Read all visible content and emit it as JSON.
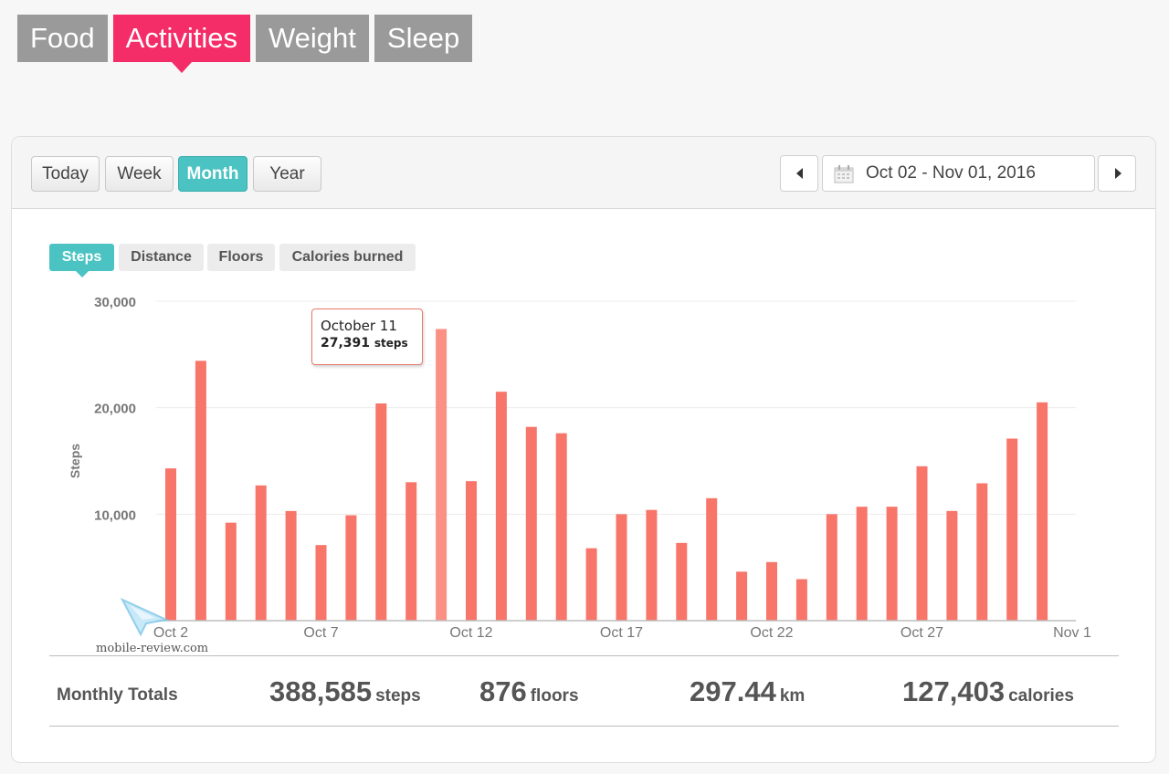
{
  "nav": {
    "tabs": [
      {
        "label": "Food",
        "active": false
      },
      {
        "label": "Activities",
        "active": true
      },
      {
        "label": "Weight",
        "active": false
      },
      {
        "label": "Sleep",
        "active": false
      }
    ]
  },
  "range_buttons": [
    {
      "label": "Today",
      "active": false
    },
    {
      "label": "Week",
      "active": false
    },
    {
      "label": "Month",
      "active": true
    },
    {
      "label": "Year",
      "active": false
    }
  ],
  "date_range": {
    "label": "Oct 02 - Nov 01, 2016",
    "icon": "calendar-icon"
  },
  "metric_tabs": [
    {
      "label": "Steps",
      "active": true
    },
    {
      "label": "Distance",
      "active": false
    },
    {
      "label": "Floors",
      "active": false
    },
    {
      "label": "Calories burned",
      "active": false
    }
  ],
  "tooltip": {
    "title": "October 11",
    "value": "27,391",
    "unit": "steps"
  },
  "watermark": "mobile-review.com",
  "chart_data": {
    "type": "bar",
    "ylabel": "Steps",
    "ylim": [
      0,
      30000
    ],
    "yticks": [
      "10,000",
      "20,000",
      "30,000"
    ],
    "ytick_values": [
      10000,
      20000,
      30000
    ],
    "x_tick_labels": [
      "Oct 2",
      "Oct 7",
      "Oct 12",
      "Oct 17",
      "Oct 22",
      "Oct 27",
      "Nov 1"
    ],
    "categories": [
      "Oct 2",
      "Oct 3",
      "Oct 4",
      "Oct 5",
      "Oct 6",
      "Oct 7",
      "Oct 8",
      "Oct 9",
      "Oct 10",
      "Oct 11",
      "Oct 12",
      "Oct 13",
      "Oct 14",
      "Oct 15",
      "Oct 16",
      "Oct 17",
      "Oct 18",
      "Oct 19",
      "Oct 20",
      "Oct 21",
      "Oct 22",
      "Oct 23",
      "Oct 24",
      "Oct 25",
      "Oct 26",
      "Oct 27",
      "Oct 28",
      "Oct 29",
      "Oct 30",
      "Oct 31",
      "Nov 1"
    ],
    "values": [
      14300,
      24400,
      9200,
      12700,
      10300,
      7100,
      9900,
      20400,
      13000,
      27391,
      13100,
      21500,
      18200,
      17600,
      6800,
      10000,
      10400,
      7300,
      11500,
      4600,
      5500,
      3900,
      10000,
      10700,
      10700,
      14500,
      10300,
      12900,
      17100,
      20500,
      0
    ],
    "highlighted_index": 9,
    "colors": {
      "bar": "#f8756a",
      "highlight": "#fa9184",
      "grid": "#ececec",
      "axis": "#bdbdbd"
    },
    "grid": true
  },
  "totals": {
    "label": "Monthly Totals",
    "items": [
      {
        "value": "388,585",
        "unit": "steps"
      },
      {
        "value": "876",
        "unit": "floors"
      },
      {
        "value": "297.44",
        "unit": "km"
      },
      {
        "value": "127,403",
        "unit": "calories"
      }
    ]
  }
}
